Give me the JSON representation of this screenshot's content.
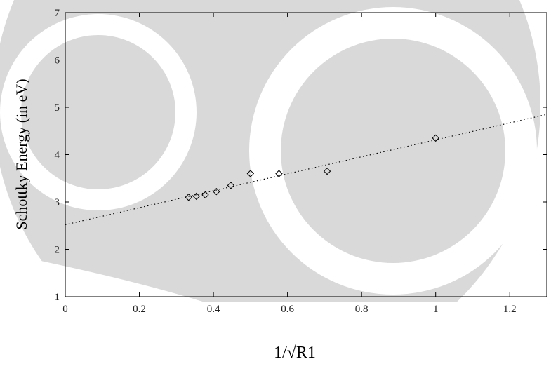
{
  "chart_data": {
    "type": "scatter",
    "x_label": "1/√R1",
    "y_label": "Schottky Energy (in eV)",
    "xlim": [
      0,
      1.3
    ],
    "ylim": [
      1,
      7
    ],
    "xticks": [
      0,
      0.2,
      0.4,
      0.6,
      0.8,
      1,
      1.2
    ],
    "yticks": [
      1,
      2,
      3,
      4,
      5,
      6,
      7
    ],
    "series": [
      {
        "style": "points",
        "color": "#000000",
        "x": [
          0.333,
          0.354,
          0.378,
          0.408,
          0.447,
          0.5,
          0.577,
          0.707,
          1.0
        ],
        "values": [
          3.1,
          3.12,
          3.15,
          3.22,
          3.35,
          3.6,
          3.6,
          3.65,
          4.35
        ]
      },
      {
        "style": "dotted-line",
        "color": "#000000",
        "x": [
          0,
          1.3
        ],
        "values": [
          2.52,
          4.85
        ]
      }
    ]
  }
}
